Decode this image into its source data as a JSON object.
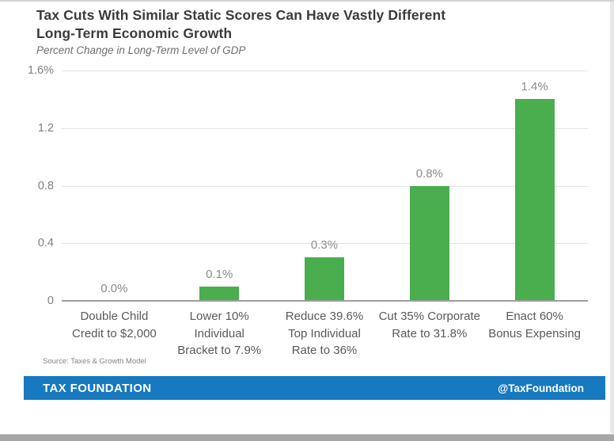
{
  "header": {
    "title_lines": [
      "Tax Cuts With Similar Static Scores Can Have Vastly Different",
      "Long-Term Economic Growth"
    ],
    "subtitle": "Percent Change in Long-Term Level of GDP"
  },
  "chart_data": {
    "type": "bar",
    "title": "Tax Cuts With Similar Static Scores Can Have Vastly Different Long-Term Economic Growth",
    "subtitle": "Percent Change in Long-Term Level of GDP",
    "categories": [
      [
        "Double Child",
        "Credit to $2,000"
      ],
      [
        "Lower 10%",
        "Individual",
        "Bracket to 7.9%"
      ],
      [
        "Reduce 39.6%",
        "Top Individual",
        "Rate to 36%"
      ],
      [
        "Cut 35% Corporate",
        "Rate to 31.8%"
      ],
      [
        "Enact 60%",
        "Bonus Expensing"
      ]
    ],
    "values": [
      0.0,
      0.1,
      0.3,
      0.8,
      1.4
    ],
    "value_labels": [
      "0.0%",
      "0.1%",
      "0.3%",
      "0.8%",
      "1.4%"
    ],
    "xlabel": "",
    "ylabel": "",
    "ylim": [
      0,
      1.6
    ],
    "yticks": [
      {
        "value": 1.6,
        "label": "1.6%"
      },
      {
        "value": 1.2,
        "label": "1.2"
      },
      {
        "value": 0.8,
        "label": "0.8"
      },
      {
        "value": 0.4,
        "label": "0.4"
      },
      {
        "value": 0.0,
        "label": "0"
      }
    ],
    "grid": true,
    "legend": false,
    "bar_color": "#4aad4e"
  },
  "source": "Source: Taxes & Growth Model",
  "footer": {
    "brand": "TAX FOUNDATION",
    "handle": "@TaxFoundation",
    "bg_color": "#1779bf"
  },
  "colors": {
    "bar_green": "#4aad4e",
    "footer_blue": "#1779bf",
    "gridline": "#e3e3e3",
    "baseline": "#9e9e9e",
    "title_text": "#3b3b3b",
    "axis_text": "#7f7f7f",
    "category_text": "#595959",
    "value_label_text": "#8c8c8c"
  }
}
